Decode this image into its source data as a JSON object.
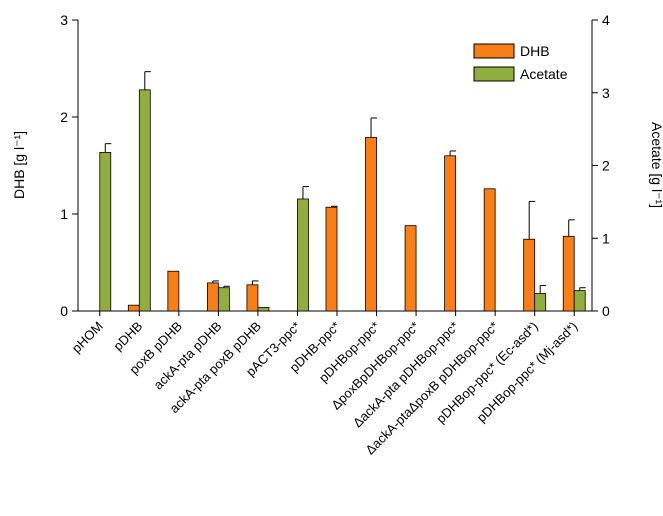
{
  "chart_data": {
    "type": "bar",
    "title": "",
    "categories": [
      "pHOM",
      "pDHB",
      "poxB pDHB",
      "ackA-pta pDHB",
      "ackA-pta poxB pDHB",
      "pACT3-ppc*",
      "pDHB-ppc*",
      "pDHBop-ppc*",
      "ΔpoxBpDHBop-ppc*",
      "ΔackA-pta pDHBop-ppc*",
      "ΔackA-ptaΔpoxB pDHBop-ppc*",
      "pDHBop-ppc* (Ec-asd*)",
      "pDHBop-ppc* (Mj-asd*)"
    ],
    "series": [
      {
        "name": "DHB",
        "axis": "left",
        "color": "#F97E16",
        "values": [
          0,
          0.06,
          0.41,
          0.29,
          0.27,
          0,
          1.07,
          1.79,
          0.88,
          1.6,
          1.26,
          0.74,
          0.77
        ],
        "errors": [
          0,
          0,
          0,
          0.02,
          0.04,
          0,
          0.01,
          0.2,
          0,
          0.05,
          0,
          0.39,
          0.17
        ]
      },
      {
        "name": "Acetate",
        "axis": "right",
        "color": "#8FAE3E",
        "values": [
          2.18,
          3.04,
          0,
          0.32,
          0.05,
          1.54,
          0,
          0,
          0,
          0,
          0,
          0.24,
          0.28
        ],
        "errors": [
          0.12,
          0.25,
          0,
          0.02,
          0,
          0.17,
          0,
          0,
          0,
          0,
          0,
          0.11,
          0.04
        ]
      }
    ],
    "left_axis": {
      "label": "DHB [g l⁻¹]",
      "ylim": [
        0,
        3
      ],
      "ticks": [
        "0",
        "1",
        "2",
        "3"
      ]
    },
    "right_axis": {
      "label": "Acetate [g l⁻¹]",
      "ylim": [
        0,
        4
      ],
      "ticks": [
        "0",
        "1",
        "2",
        "3",
        "4"
      ]
    },
    "legend": {
      "position": "top-right",
      "entries": [
        "DHB",
        "Acetate"
      ]
    },
    "grid": false
  }
}
